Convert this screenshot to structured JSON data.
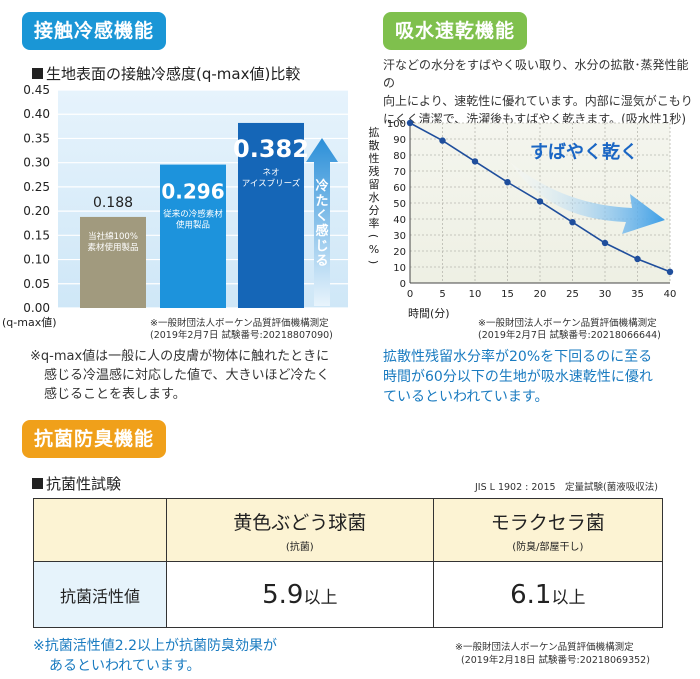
{
  "cooling": {
    "badge": "接触冷感機能",
    "section_title": "生地表面の接触冷感度(q-max値)比較",
    "y_unit": "(q-max値)",
    "test_note_line1": "※一般財団法人ボーケン品質評価機構測定",
    "test_note_line2": "(2019年2月7日 試験番号:20218807090)",
    "arrow_text": "冷たく感じる",
    "note_line1": "※q-max値は一般に人の皮膚が物体に触れたときに",
    "note_line2": "感じる冷温感に対応した値で、大きいほど冷たく",
    "note_line3": "感じることを表します。"
  },
  "drying": {
    "badge": "吸水速乾機能",
    "desc_line1": "汗などの水分をすばやく吸い取り、水分の拡散･蒸発性能の",
    "desc_line2": "向上により、速乾性に優れています。内部に湿気がこもり",
    "desc_line3": "にくく清潔で、洗濯後もすばやく乾きます。(吸水性1秒)",
    "ylabel": "拡散性残留水分率(%)",
    "xlabel": "時間(分)",
    "banner": "すばやく乾く",
    "test_note_line1": "※一般財団法人ボーケン品質評価機構測定",
    "test_note_line2": "(2019年2月7日 試験番号:20218066644)",
    "result_line1": "拡散性残留水分率が20%を下回るのに至る",
    "result_line2": "時間が60分以下の生地が吸水速乾性に優れ",
    "result_line3": "ているといわれています。"
  },
  "antibac": {
    "badge": "抗菌防臭機能",
    "section_title": "抗菌性試験",
    "standard": "JIS L 1902 : 2015　定量試験(菌液吸収法)",
    "col1_title": "黄色ぶどう球菌",
    "col1_sub": "(抗菌)",
    "col2_title": "モラクセラ菌",
    "col2_sub": "(防臭/部屋干し)",
    "row_label": "抗菌活性値",
    "val1": "5.9",
    "val1_suffix": "以上",
    "val2": "6.1",
    "val2_suffix": "以上",
    "note_line1": "※抗菌活性値2.2以上が抗菌防臭効果が",
    "note_line2": "あるといわれています。",
    "test_note_line1": "※一般財団法人ボーケン品質評価機構測定",
    "test_note_line2": "(2019年2月18日 試験番号:20218069352)"
  },
  "colors": {
    "badge_blue": "#1a96d6",
    "badge_green": "#7fc04d",
    "badge_orange": "#f0a01a",
    "bar_grey": "#a19a7e",
    "bar_mid": "#1d93dc",
    "bar_dark": "#1566b7",
    "line_color": "#1f4e9c",
    "table_header_bg": "#fcf3d3",
    "table_label_bg": "#e6f3fb"
  },
  "chart_data": [
    {
      "type": "bar",
      "categories": [
        "当社綿100%素材使用製品",
        "従来の冷感素材使用製品",
        "ネオアイスブリーズ"
      ],
      "values": [
        0.188,
        0.296,
        0.382
      ],
      "value_labels": [
        "0.188",
        "0.296",
        "0.382"
      ],
      "bar_labels": [
        [
          "当社綿100%",
          "素材使用製品"
        ],
        [
          "従来の冷感素材",
          "使用製品"
        ],
        [
          "ネオ",
          "アイスブリーズ"
        ]
      ],
      "y_ticks": [
        "0.00",
        "0.05",
        "0.10",
        "0.15",
        "0.20",
        "0.25",
        "0.30",
        "0.35",
        "0.40",
        "0.45"
      ],
      "ylim": [
        0,
        0.45
      ],
      "ylabel": "(q-max値)"
    },
    {
      "type": "line",
      "x": [
        0,
        5,
        10,
        15,
        20,
        25,
        30,
        35,
        40
      ],
      "y": [
        100,
        89,
        76,
        63,
        51,
        38,
        25,
        15,
        7
      ],
      "x_ticks": [
        "0",
        "5",
        "10",
        "15",
        "20",
        "25",
        "30",
        "35",
        "40"
      ],
      "y_ticks": [
        "0",
        "10",
        "20",
        "30",
        "40",
        "50",
        "60",
        "70",
        "80",
        "90",
        "100"
      ],
      "xlim": [
        0,
        40
      ],
      "ylim": [
        0,
        100
      ],
      "xlabel": "時間(分)",
      "ylabel": "拡散性残留水分率(%)",
      "grid": true
    }
  ]
}
